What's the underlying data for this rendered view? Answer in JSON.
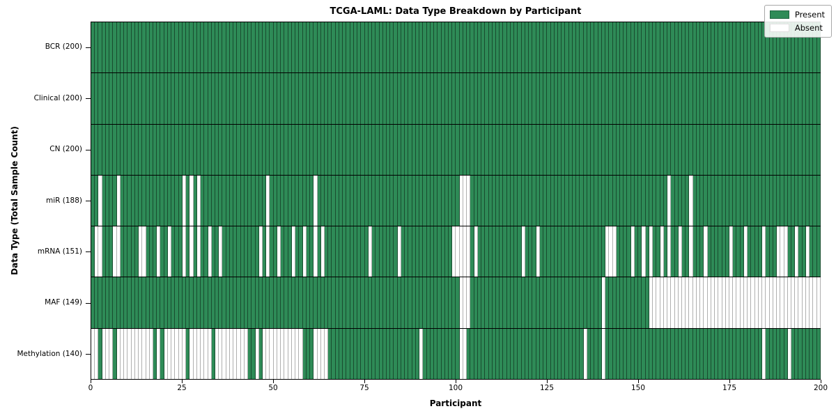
{
  "chart_data": {
    "type": "heatmap",
    "title": "TCGA-LAML: Data Type Breakdown by Participant",
    "xlabel": "Participant",
    "ylabel": "Data Type (Total Sample Count)",
    "n_participants": 200,
    "x_ticks": [
      0,
      25,
      50,
      75,
      100,
      125,
      150,
      175,
      200
    ],
    "grid": "row-separators-on",
    "legend_position": "upper-right",
    "colors": {
      "present": "#2E8B57",
      "absent": "#FFFFFF",
      "separator": "#000000"
    },
    "legend": [
      {
        "label": "Present",
        "color": "#2E8B57"
      },
      {
        "label": "Absent",
        "color": "#FFFFFF"
      }
    ],
    "rows": [
      {
        "name": "BCR",
        "label": "BCR (200)",
        "present_count": 200,
        "absent_participants": []
      },
      {
        "name": "Clinical",
        "label": "Clinical (200)",
        "present_count": 200,
        "absent_participants": []
      },
      {
        "name": "CN",
        "label": "CN (200)",
        "present_count": 200,
        "absent_participants": []
      },
      {
        "name": "miR",
        "label": "miR (188)",
        "present_count": 188,
        "absent_participants": [
          2,
          7,
          25,
          27,
          29,
          48,
          61,
          101,
          102,
          103,
          158,
          164
        ]
      },
      {
        "name": "mRNA",
        "label": "mRNA (151)",
        "present_count": 151,
        "absent_participants": [
          1,
          2,
          6,
          7,
          13,
          14,
          18,
          21,
          25,
          27,
          29,
          32,
          35,
          46,
          48,
          51,
          55,
          58,
          61,
          63,
          76,
          84,
          99,
          100,
          101,
          102,
          103,
          105,
          118,
          122,
          141,
          142,
          143,
          148,
          151,
          153,
          156,
          158,
          161,
          164,
          168,
          175,
          179,
          184,
          188,
          189,
          190,
          193,
          196
        ]
      },
      {
        "name": "MAF",
        "label": "MAF (149)",
        "present_count": 149,
        "absent_participants": [
          101,
          102,
          103,
          140,
          153,
          154,
          155,
          156,
          157,
          158,
          159,
          160,
          161,
          162,
          163,
          164,
          165,
          166,
          167,
          168,
          169,
          170,
          171,
          172,
          173,
          174,
          175,
          176,
          177,
          178,
          179,
          180,
          181,
          182,
          183,
          184,
          185,
          186,
          187,
          188,
          189,
          190,
          191,
          192,
          193,
          194,
          195,
          196,
          197,
          198,
          199
        ]
      },
      {
        "name": "Methylation",
        "label": "Methylation (140)",
        "present_count": 140,
        "absent_participants": [
          0,
          1,
          3,
          4,
          5,
          7,
          8,
          9,
          10,
          11,
          12,
          13,
          14,
          15,
          16,
          18,
          20,
          21,
          22,
          23,
          24,
          25,
          27,
          28,
          29,
          30,
          31,
          32,
          34,
          35,
          36,
          37,
          38,
          39,
          40,
          41,
          42,
          45,
          47,
          48,
          49,
          50,
          51,
          52,
          53,
          54,
          55,
          56,
          57,
          61,
          62,
          63,
          64,
          90,
          101,
          102,
          135,
          140,
          184,
          191
        ]
      }
    ]
  }
}
